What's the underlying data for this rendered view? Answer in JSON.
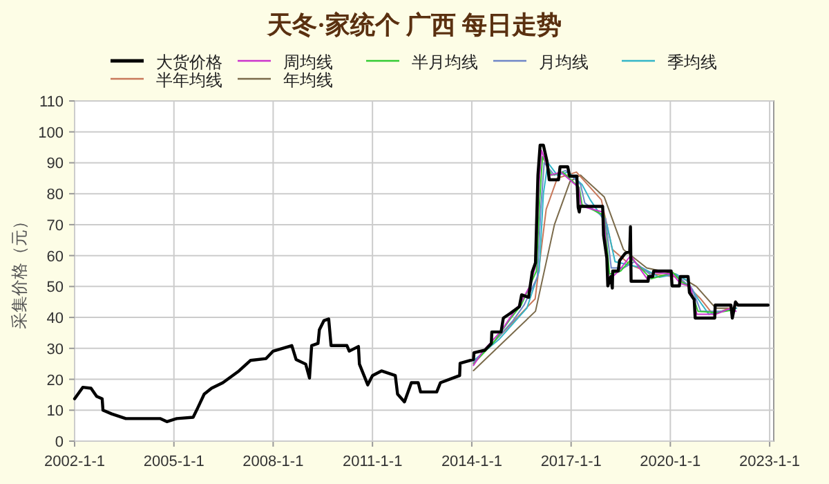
{
  "chart_data": {
    "type": "line",
    "title": "天冬·家统个 广西 每日走势",
    "ylabel": "采集价格（元）",
    "legend": "top",
    "grid": true,
    "xlim": [
      "2002-01-01",
      "2023-02-15"
    ],
    "xticks": [
      {
        "value": "2002-01-01",
        "label": "2002-1-1"
      },
      {
        "value": "2005-01-01",
        "label": "2005-1-1"
      },
      {
        "value": "2008-01-01",
        "label": "2008-1-1"
      },
      {
        "value": "2011-01-01",
        "label": "2011-1-1"
      },
      {
        "value": "2014-01-01",
        "label": "2014-1-1"
      },
      {
        "value": "2017-01-01",
        "label": "2017-1-1"
      },
      {
        "value": "2020-01-01",
        "label": "2020-1-1"
      },
      {
        "value": "2023-01-01",
        "label": "2023-1-1"
      }
    ],
    "ylim": [
      0,
      110
    ],
    "yticks": [
      0,
      10,
      20,
      30,
      40,
      50,
      60,
      70,
      80,
      90,
      100,
      110
    ],
    "series": [
      {
        "name": "大货价格",
        "color": "#000000",
        "x": [
          "2002-01-01",
          "2002-04-01",
          "2002-07-01",
          "2002-09-01",
          "2002-11-01",
          "2002-11-10",
          "2003-02-15",
          "2003-07-20",
          "2004-08-01",
          "2004-10-15",
          "2005-02-01",
          "2005-08-01",
          "2005-09-20",
          "2005-12-01",
          "2006-02-20",
          "2006-06-25",
          "2006-12-20",
          "2007-04-25",
          "2007-10-15",
          "2008-01-01",
          "2008-07-25",
          "2008-09-10",
          "2008-12-25",
          "2009-02-05",
          "2009-03-01",
          "2009-05-10",
          "2009-05-25",
          "2009-07-15",
          "2009-09-05",
          "2009-10-01",
          "2010-03-25",
          "2010-04-20",
          "2010-07-30",
          "2010-08-10",
          "2010-11-10",
          "2011-01-01",
          "2011-04-10",
          "2011-09-10",
          "2011-10-05",
          "2011-12-20",
          "2012-03-05",
          "2012-05-20",
          "2012-06-15",
          "2012-12-10",
          "2013-01-20",
          "2013-08-20",
          "2013-08-25",
          "2014-01-20",
          "2014-01-25",
          "2014-05-25",
          "2014-08-05",
          "2014-08-10",
          "2014-11-20",
          "2014-12-15",
          "2015-03-01",
          "2015-06-10",
          "2015-07-05",
          "2015-09-20",
          "2015-10-30",
          "2015-12-05",
          "2016-01-01",
          "2016-01-25",
          "2016-03-01",
          "2016-04-10",
          "2016-05-05",
          "2016-08-15",
          "2016-09-01",
          "2016-11-25",
          "2016-12-15",
          "2017-03-05",
          "2017-03-20",
          "2017-04-01",
          "2017-04-10",
          "2017-12-15",
          "2017-12-25",
          "2018-01-30",
          "2018-02-10",
          "2018-03-15",
          "2018-04-01",
          "2018-04-05",
          "2018-06-05",
          "2018-06-20",
          "2018-08-20",
          "2018-10-10",
          "2018-10-18",
          "2018-10-25",
          "2019-05-01",
          "2019-05-05",
          "2019-06-20",
          "2019-07-01",
          "2020-01-10",
          "2020-01-20",
          "2020-04-10",
          "2020-04-20",
          "2020-07-15",
          "2020-07-30",
          "2020-09-20",
          "2020-10-01",
          "2021-05-05",
          "2021-05-10",
          "2021-10-30",
          "2021-11-15",
          "2021-12-20",
          "2022-01-15",
          "2022-12-15"
        ],
        "values": [
          13.7,
          17.4,
          17.1,
          14.5,
          13.7,
          10.0,
          8.8,
          7.3,
          7.3,
          6.3,
          7.3,
          7.7,
          10.7,
          15.2,
          17.1,
          18.9,
          22.7,
          26.1,
          26.7,
          29.1,
          30.9,
          26.4,
          24.9,
          20.4,
          30.9,
          31.6,
          36.0,
          39.0,
          39.5,
          30.9,
          30.9,
          29.1,
          30.6,
          24.9,
          18.2,
          21.2,
          22.7,
          21.2,
          15.2,
          12.7,
          18.9,
          18.9,
          15.9,
          15.9,
          18.9,
          21.2,
          25.2,
          26.4,
          28.6,
          29.4,
          31.6,
          35.3,
          35.3,
          39.8,
          41.3,
          43.5,
          47.3,
          46.5,
          54.7,
          57.7,
          86.0,
          95.7,
          95.7,
          90.5,
          84.5,
          84.5,
          88.7,
          88.7,
          85.7,
          85.7,
          75.6,
          74.1,
          75.9,
          75.9,
          66.6,
          59.2,
          50.2,
          53.2,
          49.5,
          55.0,
          55.0,
          58.4,
          60.7,
          61.4,
          69.3,
          51.7,
          51.7,
          53.2,
          53.2,
          55.0,
          55.0,
          50.2,
          50.2,
          53.2,
          53.2,
          48.0,
          45.8,
          39.8,
          39.8,
          44.0,
          44.0,
          39.8,
          45.0,
          44.0,
          44.0
        ]
      },
      {
        "name": "周均线",
        "color": "#cc33cc",
        "x": [
          "2014-01-20",
          "2014-05-01",
          "2014-09-01",
          "2014-12-01",
          "2015-03-01",
          "2015-07-01",
          "2015-10-01",
          "2015-12-10",
          "2016-01-10",
          "2016-02-10",
          "2016-05-15",
          "2016-09-10",
          "2017-03-25",
          "2017-04-20",
          "2017-12-25",
          "2018-02-20",
          "2018-06-10",
          "2018-10-20",
          "2019-05-01",
          "2019-07-10",
          "2020-01-25",
          "2020-04-20",
          "2020-08-10",
          "2020-10-20",
          "2021-05-15",
          "2021-11-01",
          "2021-12-25"
        ],
        "values": [
          24.5,
          29,
          33,
          36,
          40,
          45,
          50,
          57,
          82,
          94,
          86,
          87,
          82,
          76,
          74,
          52,
          55,
          60,
          52,
          54.5,
          54,
          51,
          50,
          41,
          41,
          43,
          42
        ]
      },
      {
        "name": "半月均线",
        "color": "#33cc33",
        "x": [
          "2014-01-20",
          "2014-09-01",
          "2015-03-01",
          "2015-07-01",
          "2015-12-15",
          "2016-01-20",
          "2016-02-20",
          "2016-06-01",
          "2016-10-01",
          "2017-04-01",
          "2017-05-01",
          "2018-01-01",
          "2018-03-01",
          "2018-07-01",
          "2018-11-01",
          "2019-06-01",
          "2020-02-01",
          "2020-05-01",
          "2020-08-01",
          "2020-11-01",
          "2021-06-01",
          "2021-12-01"
        ],
        "values": [
          25,
          32,
          39.5,
          44,
          55,
          78,
          92,
          86,
          87,
          82,
          76.5,
          73,
          54,
          55,
          59,
          52.5,
          54.5,
          51.5,
          50,
          42,
          41.5,
          42.5
        ]
      },
      {
        "name": "月均线",
        "color": "#6f86c8",
        "x": [
          "2014-01-20",
          "2014-10-01",
          "2015-04-01",
          "2015-08-01",
          "2015-12-25",
          "2016-02-01",
          "2016-03-10",
          "2016-07-01",
          "2016-11-01",
          "2017-04-15",
          "2017-06-01",
          "2018-01-15",
          "2018-03-20",
          "2018-08-01",
          "2018-12-01",
          "2019-07-01",
          "2020-02-15",
          "2020-05-15",
          "2020-09-01",
          "2020-12-01",
          "2021-07-01",
          "2021-12-01"
        ],
        "values": [
          25.5,
          33,
          39,
          44,
          53,
          75,
          90,
          86,
          87.5,
          83,
          77,
          72,
          56,
          56,
          58,
          53,
          54,
          52,
          49,
          42,
          42,
          42.5
        ]
      },
      {
        "name": "季均线",
        "color": "#33b5c8",
        "x": [
          "2014-01-20",
          "2014-11-01",
          "2015-05-01",
          "2015-09-01",
          "2016-01-15",
          "2016-03-01",
          "2016-04-20",
          "2016-08-01",
          "2016-12-01",
          "2017-05-01",
          "2017-08-01",
          "2018-02-01",
          "2018-05-01",
          "2018-10-01",
          "2019-03-01",
          "2019-09-01",
          "2020-03-01",
          "2020-07-01",
          "2020-11-01",
          "2021-03-01",
          "2021-08-01",
          "2022-01-01"
        ],
        "values": [
          26,
          33,
          39,
          43,
          55,
          80,
          90,
          86,
          87,
          83,
          78,
          70,
          58,
          57,
          56,
          53,
          54,
          52,
          46,
          41,
          42,
          43
        ]
      },
      {
        "name": "半年均线",
        "color": "#c8785a",
        "x": [
          "2014-01-20",
          "2015-12-01",
          "2016-04-01",
          "2016-08-01",
          "2017-03-01",
          "2017-12-01",
          "2018-04-01",
          "2018-10-15",
          "2019-07-01",
          "2020-04-01",
          "2020-12-01",
          "2021-04-15",
          "2021-10-15",
          "2022-01-01"
        ],
        "values": [
          25.2,
          46,
          75,
          85,
          87,
          78,
          62,
          57,
          54,
          53,
          46,
          41,
          43,
          43
        ]
      },
      {
        "name": "年均线",
        "color": "#7a6a4a",
        "x": [
          "2014-01-20",
          "2015-12-05",
          "2016-07-01",
          "2016-12-20",
          "2017-04-15",
          "2018-01-01",
          "2018-08-01",
          "2019-04-15",
          "2020-03-01",
          "2020-10-15",
          "2021-05-15",
          "2021-12-01"
        ],
        "values": [
          22.8,
          42,
          70,
          84,
          86,
          79,
          62,
          56,
          54,
          50,
          43,
          43
        ]
      }
    ]
  }
}
